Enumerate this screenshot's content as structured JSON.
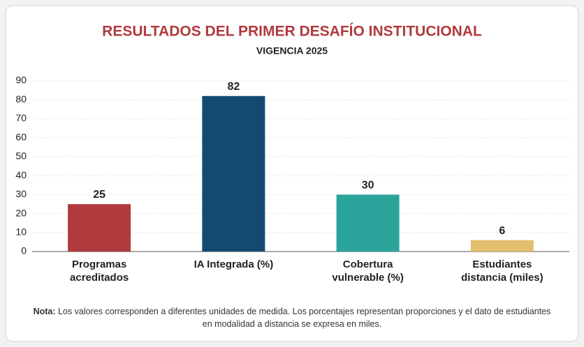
{
  "chart_data": {
    "type": "bar",
    "title": "RESULTADOS DEL PRIMER DESAFÍO INSTITUCIONAL",
    "subtitle": "VIGENCIA 2025",
    "categories": [
      "Programas acreditados",
      "IA Integrada (%)",
      "Cobertura vulnerable (%)",
      "Estudiantes distancia (miles)"
    ],
    "values": [
      25,
      82,
      30,
      6
    ],
    "colors": [
      "#b03a3e",
      "#144a72",
      "#2aa39a",
      "#e2bf6c"
    ],
    "ylim": [
      0,
      90
    ],
    "yticks": [
      0,
      10,
      20,
      30,
      40,
      50,
      60,
      70,
      80,
      90
    ],
    "grid": true,
    "note_label": "Nota:",
    "note": "Los valores corresponden a diferentes unidades de medida. Los porcentajes representan proporciones y el dato de estudiantes en modalidad a distancia se expresa en miles."
  }
}
